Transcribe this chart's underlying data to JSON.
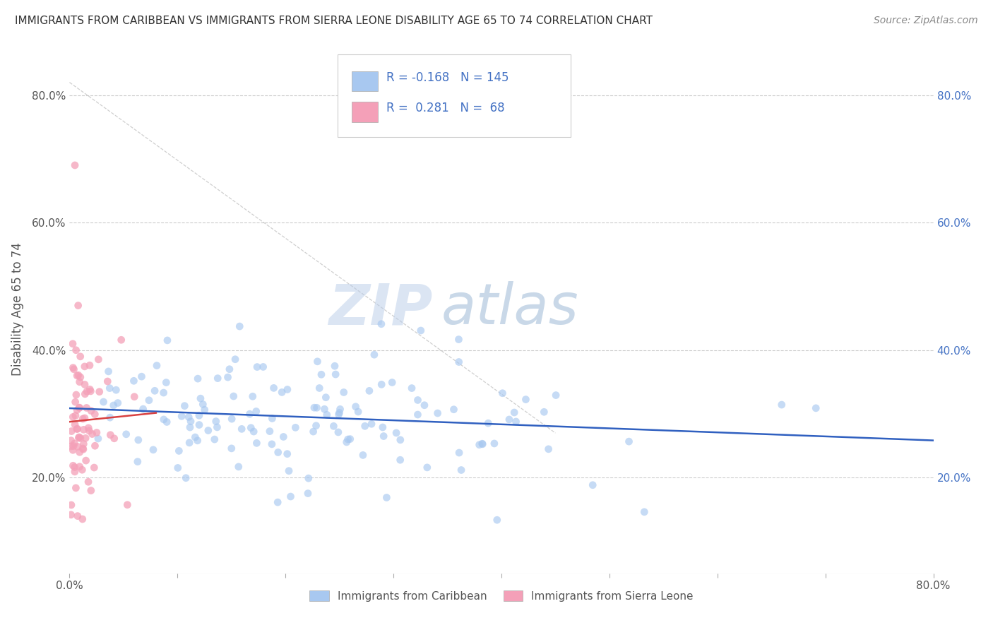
{
  "title": "IMMIGRANTS FROM CARIBBEAN VS IMMIGRANTS FROM SIERRA LEONE DISABILITY AGE 65 TO 74 CORRELATION CHART",
  "source": "Source: ZipAtlas.com",
  "ylabel": "Disability Age 65 to 74",
  "legend_labels": [
    "Immigrants from Caribbean",
    "Immigrants from Sierra Leone"
  ],
  "r_caribbean": -0.168,
  "n_caribbean": 145,
  "r_sierraleone": 0.281,
  "n_sierraleone": 68,
  "color_caribbean": "#a8c8f0",
  "color_sierraleone": "#f4a0b8",
  "trendline_caribbean": "#3060c0",
  "trendline_sierraleone": "#d84040",
  "watermark_zip": "ZIP",
  "watermark_atlas": "atlas",
  "xlim": [
    0.0,
    0.8
  ],
  "ylim": [
    0.05,
    0.88
  ],
  "xticks_minor": [
    0.0,
    0.1,
    0.2,
    0.3,
    0.4,
    0.5,
    0.6,
    0.7,
    0.8
  ],
  "yticks": [
    0.2,
    0.4,
    0.6,
    0.8
  ],
  "background_color": "#ffffff",
  "grid_color": "#cccccc",
  "title_color": "#333333",
  "axis_label_color": "#555555",
  "tick_color": "#555555",
  "right_tick_color": "#4472c4",
  "legend_r_color": "#4472c4",
  "seed_caribbean": 42,
  "seed_sierraleone": 99
}
